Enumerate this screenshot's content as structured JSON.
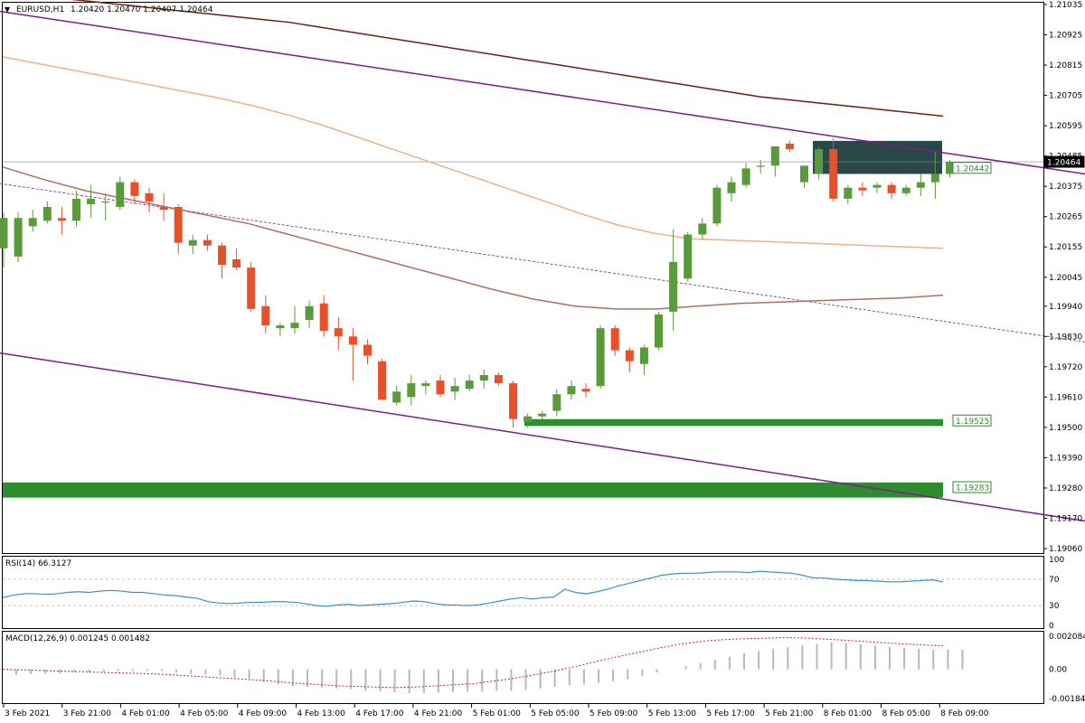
{
  "header": {
    "symbol": "EURUSD,H1",
    "ohlc": "1.20420 1.20470 1.20407 1.20464"
  },
  "colors": {
    "bull": "#5a9a3c",
    "bear": "#e8502a",
    "ma_slow": "#6b1f12",
    "ma_mid": "#f0b08a",
    "ma_fast": "#b06e60",
    "channel": "#7b1e8c",
    "support_zone": "#2e8b2e",
    "resistance_box": "#1f3d3f",
    "rsi_line": "#3a8fd0",
    "macd_hist": "#b8b8b8",
    "macd_signal": "#c8281e"
  },
  "chart_data": [
    {
      "type": "candlestick",
      "title": "EURUSD,H1",
      "ylim": [
        1.1906,
        1.21035
      ],
      "y_ticks": [
        "1.21035",
        "1.20925",
        "1.20815",
        "1.20705",
        "1.20595",
        "1.20485",
        "1.20375",
        "1.20265",
        "1.20155",
        "1.20045",
        "1.19940",
        "1.19830",
        "1.19720",
        "1.19610",
        "1.19500",
        "1.19390",
        "1.19280",
        "1.19170",
        "1.19060"
      ],
      "x_ticks": [
        "3 Feb 2021",
        "3 Feb 21:00",
        "4 Feb 01:00",
        "4 Feb 05:00",
        "4 Feb 09:00",
        "4 Feb 13:00",
        "4 Feb 17:00",
        "4 Feb 21:00",
        "5 Feb 01:00",
        "5 Feb 05:00",
        "5 Feb 09:00",
        "5 Feb 13:00",
        "5 Feb 17:00",
        "5 Feb 21:00",
        "8 Feb 01:00",
        "8 Feb 05:00",
        "8 Feb 09:00"
      ],
      "price_labels": {
        "current": "1.20464",
        "level_a": "1.20442",
        "level_b": "1.19525",
        "level_c": "1.19283"
      },
      "candles": [
        [
          1.2015,
          1.2028,
          1.2008,
          1.2026
        ],
        [
          1.2012,
          1.2028,
          1.201,
          1.2026
        ],
        [
          1.2023,
          1.2029,
          1.2021,
          1.2026
        ],
        [
          1.2025,
          1.2032,
          1.2024,
          1.203
        ],
        [
          1.2026,
          1.203,
          1.202,
          1.2025
        ],
        [
          1.2025,
          1.2036,
          1.2023,
          1.2033
        ],
        [
          1.2031,
          1.2038,
          1.2026,
          1.2033
        ],
        [
          1.2032,
          1.2035,
          1.2025,
          1.2032
        ],
        [
          1.203,
          1.2041,
          1.2029,
          1.2039
        ],
        [
          1.2039,
          1.204,
          1.2031,
          1.2034
        ],
        [
          1.2035,
          1.2037,
          1.2028,
          1.2032
        ],
        [
          1.203,
          1.2035,
          1.2025,
          1.2029
        ],
        [
          1.203,
          1.2031,
          1.2013,
          1.2017
        ],
        [
          1.2016,
          1.202,
          1.2013,
          1.2018
        ],
        [
          1.2018,
          1.202,
          1.2014,
          1.2016
        ],
        [
          1.2016,
          1.2017,
          1.2004,
          1.2009
        ],
        [
          1.2011,
          1.2015,
          1.2007,
          1.2008
        ],
        [
          1.2008,
          1.201,
          1.1992,
          1.1993
        ],
        [
          1.1994,
          1.1998,
          1.1984,
          1.1987
        ],
        [
          1.1986,
          1.1988,
          1.1983,
          1.1987
        ],
        [
          1.1986,
          1.1994,
          1.1984,
          1.1988
        ],
        [
          1.1989,
          1.1996,
          1.1986,
          1.1994
        ],
        [
          1.1995,
          1.1998,
          1.1983,
          1.1985
        ],
        [
          1.1986,
          1.199,
          1.1978,
          1.1983
        ],
        [
          1.1983,
          1.1986,
          1.1967,
          1.198
        ],
        [
          1.198,
          1.1982,
          1.1973,
          1.1976
        ],
        [
          1.1974,
          1.1975,
          1.196,
          1.196
        ],
        [
          1.1959,
          1.1965,
          1.1958,
          1.1963
        ],
        [
          1.1961,
          1.1969,
          1.1958,
          1.1966
        ],
        [
          1.1965,
          1.1967,
          1.1962,
          1.1966
        ],
        [
          1.1967,
          1.1969,
          1.1961,
          1.1962
        ],
        [
          1.1963,
          1.1968,
          1.196,
          1.1965
        ],
        [
          1.1964,
          1.1969,
          1.1963,
          1.1967
        ],
        [
          1.1967,
          1.1971,
          1.1964,
          1.1969
        ],
        [
          1.1969,
          1.197,
          1.1965,
          1.1966
        ],
        [
          1.1966,
          1.1967,
          1.195,
          1.1953
        ],
        [
          1.1952,
          1.1955,
          1.195,
          1.1954
        ],
        [
          1.1954,
          1.1956,
          1.1953,
          1.1955
        ],
        [
          1.1956,
          1.1964,
          1.1954,
          1.1962
        ],
        [
          1.1962,
          1.1967,
          1.196,
          1.1965
        ],
        [
          1.1964,
          1.1966,
          1.1961,
          1.1963
        ],
        [
          1.1965,
          1.1987,
          1.1964,
          1.1986
        ],
        [
          1.1986,
          1.1987,
          1.1976,
          1.1978
        ],
        [
          1.1978,
          1.1979,
          1.197,
          1.1974
        ],
        [
          1.1973,
          1.198,
          1.1969,
          1.1979
        ],
        [
          1.1979,
          1.1992,
          1.1978,
          1.1991
        ],
        [
          1.1992,
          1.2022,
          1.1985,
          1.201
        ],
        [
          1.2004,
          1.2021,
          1.2003,
          1.202
        ],
        [
          1.202,
          1.2026,
          1.2018,
          1.2024
        ],
        [
          1.2024,
          1.2038,
          1.2023,
          1.2037
        ],
        [
          1.2035,
          1.2041,
          1.2032,
          1.2039
        ],
        [
          1.2038,
          1.2046,
          1.2037,
          1.2044
        ],
        [
          1.2045,
          1.2047,
          1.2042,
          1.2045
        ],
        [
          1.2045,
          1.2052,
          1.2041,
          1.2052
        ],
        [
          1.2053,
          1.2054,
          1.205,
          1.2051
        ],
        [
          1.2039,
          1.2044,
          1.2037,
          1.2045
        ],
        [
          1.2042,
          1.2052,
          1.204,
          1.2051
        ],
        [
          1.2051,
          1.2055,
          1.2032,
          1.2033
        ],
        [
          1.2033,
          1.2038,
          1.2031,
          1.2037
        ],
        [
          1.2037,
          1.2039,
          1.2034,
          1.2036
        ],
        [
          1.2037,
          1.2039,
          1.2035,
          1.2038
        ],
        [
          1.2038,
          1.2039,
          1.2033,
          1.2035
        ],
        [
          1.2035,
          1.2038,
          1.2034,
          1.2037
        ],
        [
          1.2037,
          1.2042,
          1.2034,
          1.2039
        ],
        [
          1.2039,
          1.205,
          1.2033,
          1.2042
        ],
        [
          1.2042,
          1.2047,
          1.20407,
          1.20464
        ]
      ],
      "ma_slow": [
        1.2108,
        1.2107,
        1.2106,
        1.2105,
        1.2104,
        1.2103,
        1.2102,
        1.2101,
        1.21,
        1.2099,
        1.2098,
        1.2097,
        1.20955,
        1.2094,
        1.20925,
        1.2091,
        1.20895,
        1.2088,
        1.20865,
        1.2085,
        1.20835,
        1.2082,
        1.20805,
        1.2079,
        1.20775,
        1.2076,
        1.20745,
        1.2073,
        1.20715,
        1.207,
        1.2069,
        1.2068,
        1.2067,
        1.2066,
        1.2065,
        1.2064,
        1.2063
      ],
      "ma_mid": [
        1.20845,
        1.2082,
        1.20795,
        1.2077,
        1.20745,
        1.2072,
        1.20695,
        1.20665,
        1.2063,
        1.2059,
        1.20545,
        1.205,
        1.20455,
        1.2041,
        1.20365,
        1.2032,
        1.20275,
        1.20235,
        1.20205,
        1.20185,
        1.2018,
        1.20175,
        1.2017,
        1.20165,
        1.2016,
        1.20155,
        1.2015
      ],
      "ma_fast": [
        1.20445,
        1.204,
        1.2036,
        1.2033,
        1.203,
        1.2027,
        1.2024,
        1.202,
        1.2016,
        1.2012,
        1.2008,
        1.2004,
        1.2,
        1.19965,
        1.1994,
        1.1993,
        1.1993,
        1.1994,
        1.1995,
        1.19955,
        1.1996,
        1.19965,
        1.1997,
        1.1998
      ],
      "trendline_dashed": [
        [
          0,
          1.20385
        ],
        [
          1200,
          1.1981
        ]
      ],
      "channel_upper": [
        [
          0,
          1.2101
        ],
        [
          1200,
          1.2042
        ]
      ],
      "channel_lower": [
        [
          0,
          1.1977
        ],
        [
          1200,
          1.1916
        ]
      ]
    },
    {
      "type": "line",
      "title": "RSI(14) 66.3127",
      "ylim": [
        0,
        100
      ],
      "y_ticks": [
        "100",
        "70",
        "30",
        "0"
      ],
      "values": [
        42,
        46,
        48,
        48,
        47,
        48,
        50,
        51,
        50,
        52,
        53,
        52,
        50,
        50,
        48,
        46,
        45,
        43,
        41,
        36,
        34,
        33,
        34,
        35,
        35,
        36,
        36,
        35,
        33,
        30,
        29,
        31,
        32,
        30,
        31,
        32,
        33,
        35,
        37,
        36,
        33,
        31,
        31,
        30,
        31,
        34,
        37,
        40,
        42,
        40,
        42,
        43,
        55,
        50,
        48,
        51,
        55,
        60,
        64,
        68,
        72,
        76,
        78,
        79,
        79,
        80,
        81,
        81,
        81,
        80,
        82,
        81,
        80,
        79,
        76,
        72,
        72,
        70,
        69,
        68,
        68,
        67,
        66,
        66,
        67,
        68,
        69,
        66
      ]
    },
    {
      "type": "bar",
      "title": "MACD(12,26,9) 0.001245 0.001482",
      "ylim": [
        -0.00184,
        0.00208
      ],
      "y_ticks": [
        "0.002084",
        "0.00",
        "-0.00184"
      ],
      "histogram": [
        -0.00035,
        -0.0003,
        -0.00028,
        -0.00025,
        -0.0002,
        -0.0002,
        -0.00015,
        -0.0001,
        -0.00012,
        -0.0001,
        -0.0001,
        -0.0002,
        -0.0003,
        -0.00035,
        -0.0004,
        -0.0005,
        -0.0006,
        -0.0008,
        -0.00095,
        -0.00105,
        -0.0011,
        -0.00115,
        -0.0012,
        -0.00125,
        -0.00135,
        -0.0014,
        -0.00145,
        -0.0015,
        -0.0015,
        -0.00145,
        -0.00145,
        -0.0014,
        -0.0014,
        -0.00135,
        -0.00135,
        -0.0013,
        -0.0012,
        -0.0011,
        -0.001,
        -0.00095,
        -0.00085,
        -0.00075,
        -0.0006,
        -0.0004,
        -0.0002,
        0.0,
        0.0002,
        0.0004,
        0.0006,
        0.0008,
        0.001,
        0.00115,
        0.0013,
        0.0014,
        0.0015,
        0.0016,
        0.0017,
        0.00165,
        0.0016,
        0.0015,
        0.0014,
        0.00135,
        0.0013,
        0.00125,
        0.00125,
        0.00124
      ],
      "signal": [
        0.0,
        -5e-05,
        -0.0001,
        -0.00015,
        -0.0002,
        -0.00025,
        -0.0003,
        -0.0004,
        -0.0005,
        -0.0006,
        -0.0007,
        -0.00085,
        -0.00095,
        -0.00105,
        -0.0011,
        -0.00115,
        -0.0011,
        -0.001,
        -0.0009,
        -0.0007,
        -0.00045,
        -0.00015,
        0.0002,
        0.0006,
        0.00095,
        0.0013,
        0.0016,
        0.0018,
        0.0019,
        0.00195,
        0.002,
        0.00195,
        0.00185,
        0.00175,
        0.00165,
        0.00155,
        0.00148
      ]
    }
  ]
}
